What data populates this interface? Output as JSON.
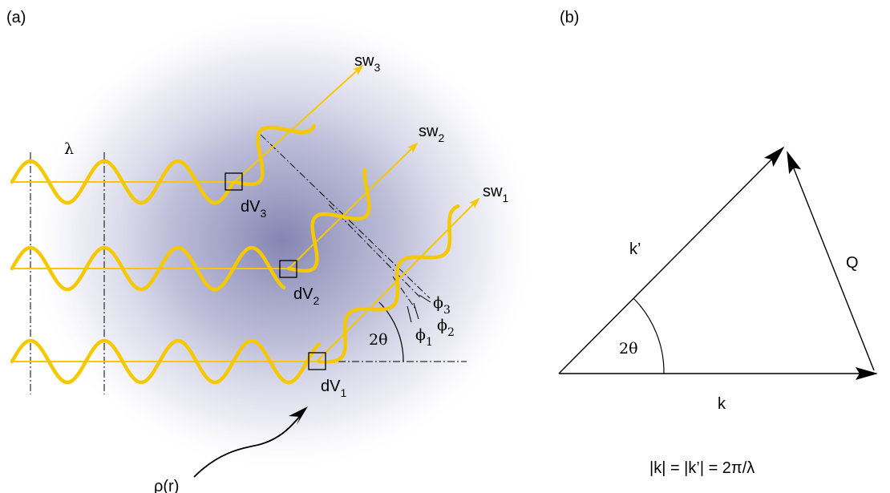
{
  "panel_a": {
    "label": "(a)",
    "lambda": "λ",
    "rho": "ρ(r)",
    "angle": "2θ",
    "scattered_waves": [
      {
        "base": "sw",
        "sub": "3"
      },
      {
        "base": "sw",
        "sub": "2"
      },
      {
        "base": "sw",
        "sub": "1"
      }
    ],
    "volume_elements": [
      {
        "base": "dV",
        "sub": "3"
      },
      {
        "base": "dV",
        "sub": "2"
      },
      {
        "base": "dV",
        "sub": "1"
      }
    ],
    "phases": [
      {
        "base": "ϕ",
        "sub": "1"
      },
      {
        "base": "ϕ",
        "sub": "2"
      },
      {
        "base": "ϕ",
        "sub": "3"
      }
    ]
  },
  "panel_b": {
    "label": "(b)",
    "k": "k",
    "k_prime": "k’",
    "Q": "Q",
    "angle": "2θ",
    "relation": "|k| = |k’| = 2π/λ"
  },
  "colors": {
    "wave": "#F5C800",
    "cloud_center": "#7E7FAE",
    "ink": "#000000"
  }
}
